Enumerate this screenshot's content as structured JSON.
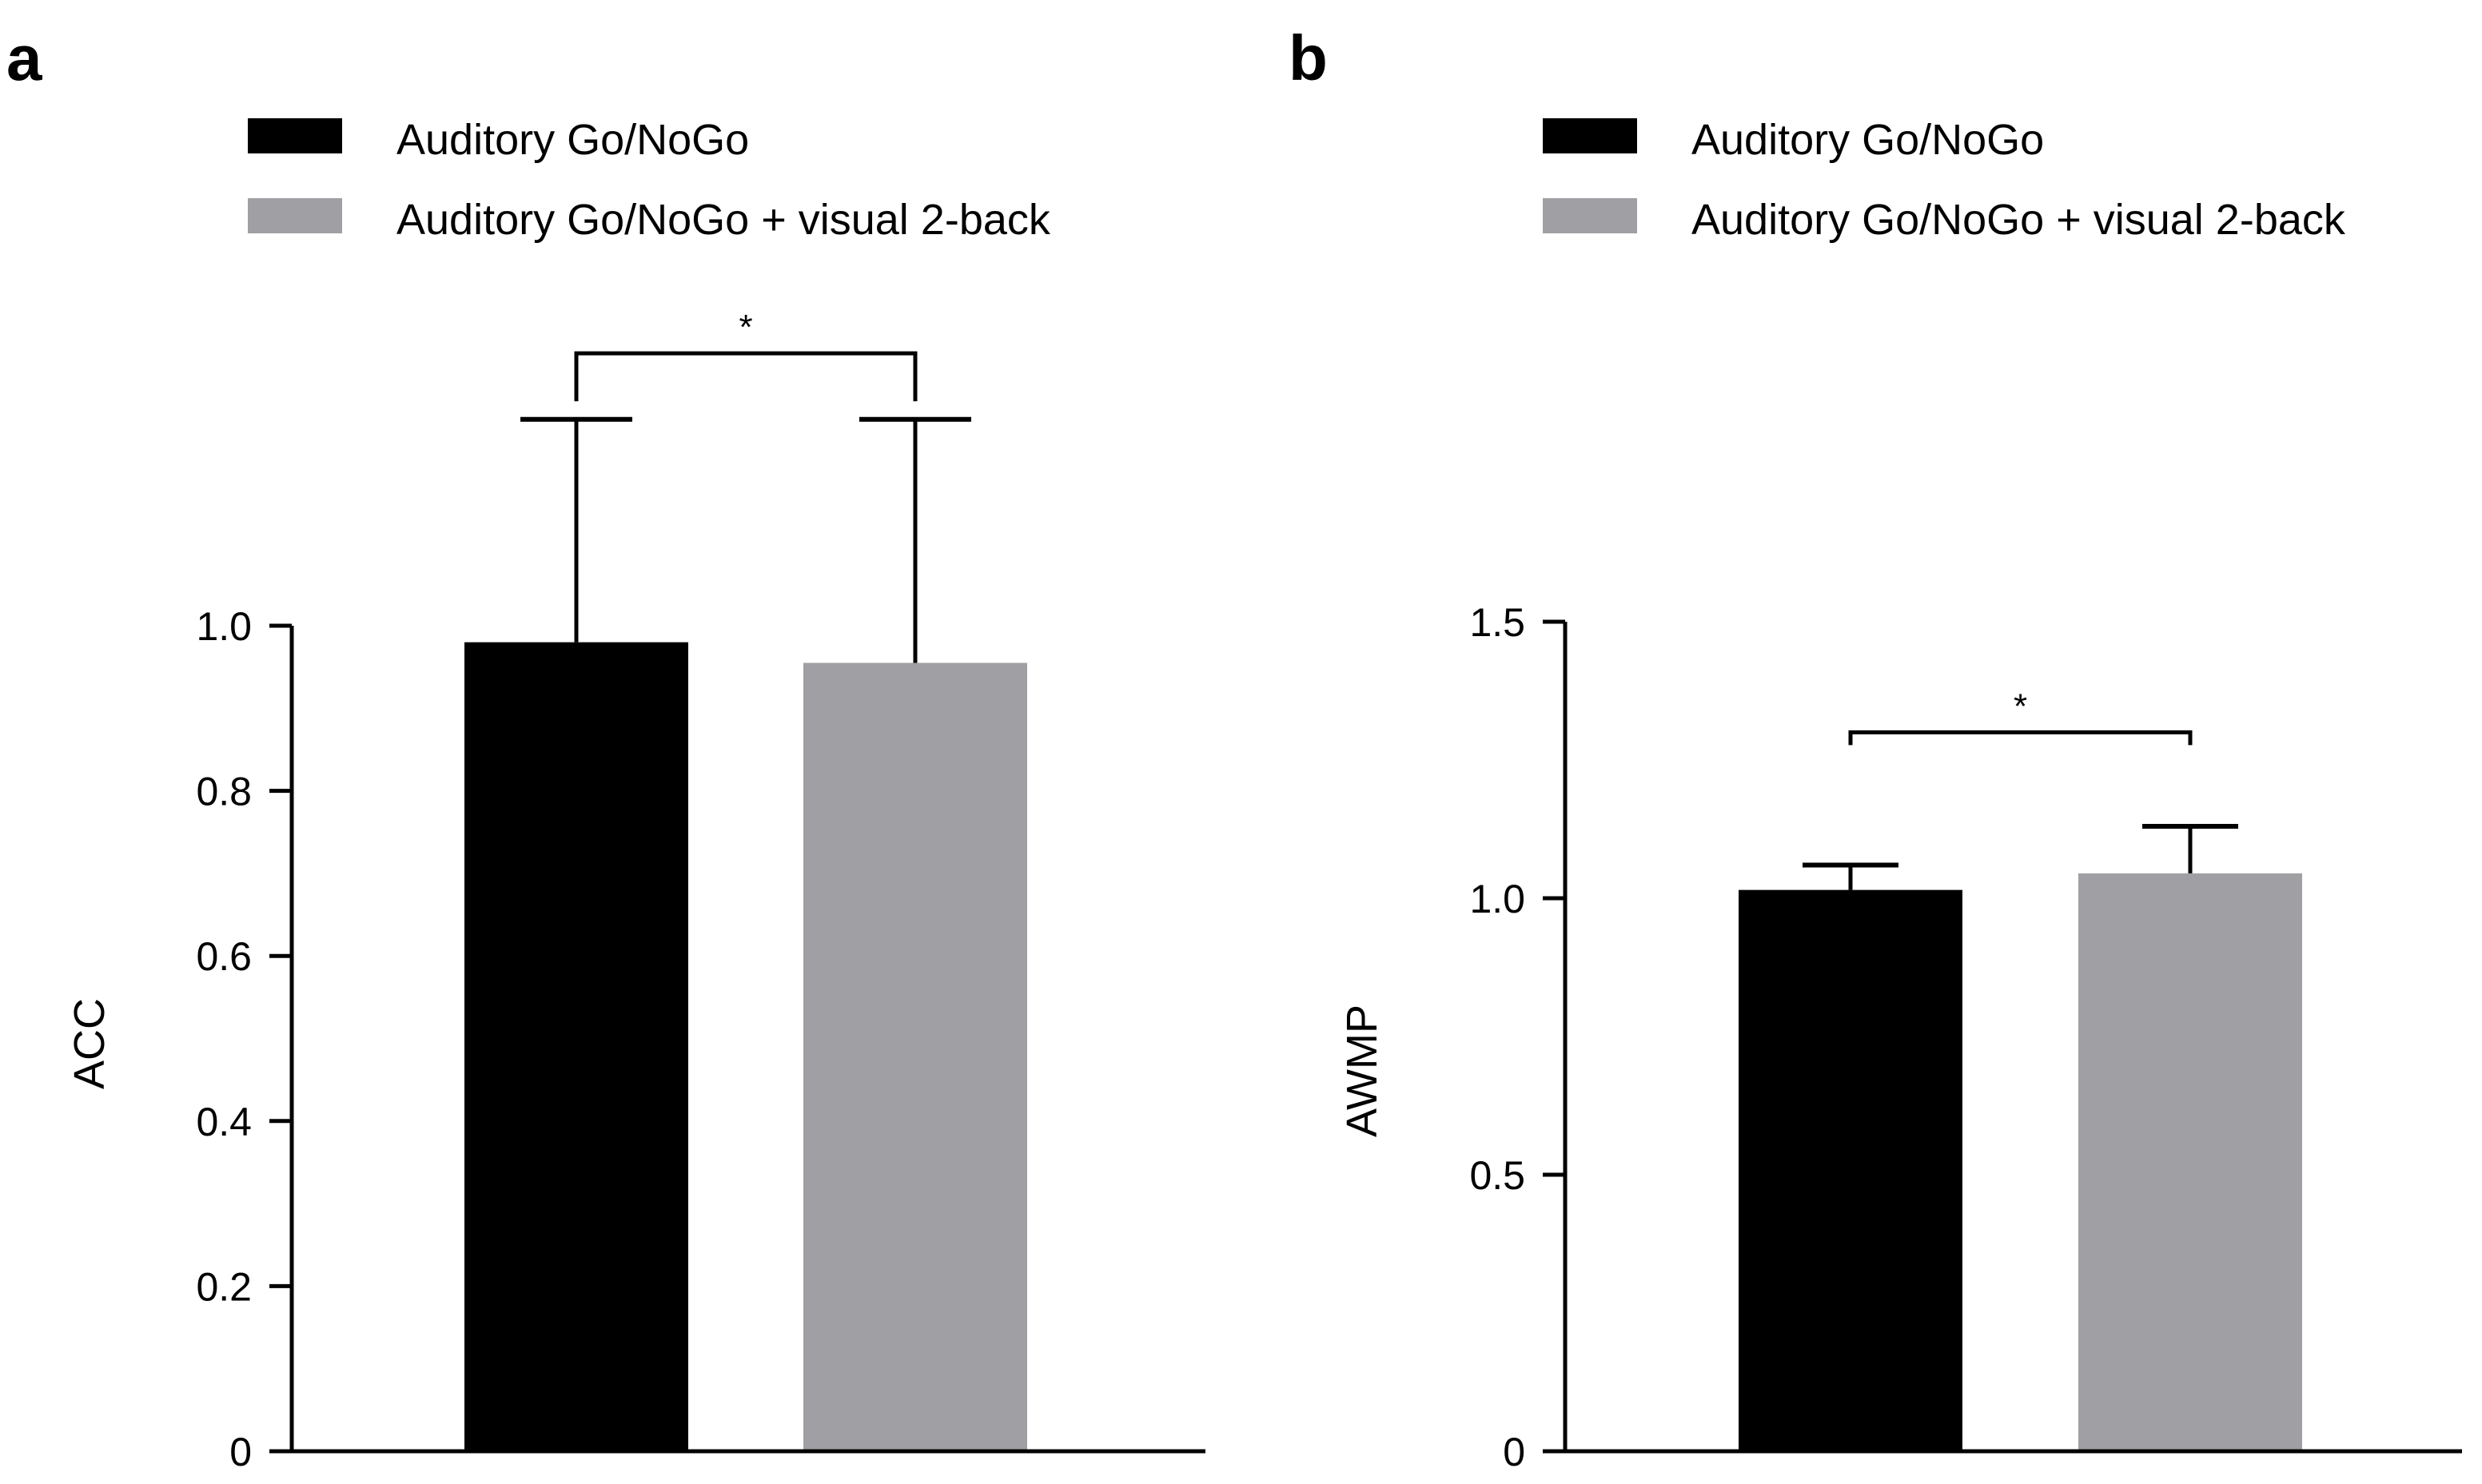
{
  "chart_data": [
    {
      "panel": "a",
      "type": "bar",
      "ylabel": "ACC",
      "xlabel": "",
      "ylim": [
        0,
        1.0
      ],
      "yticks": [
        0,
        0.2,
        0.4,
        0.6,
        0.8,
        1.0
      ],
      "ytick_labels": [
        "0",
        "0.2",
        "0.4",
        "0.6",
        "0.8",
        "1.0"
      ],
      "categories": [
        "Auditory Go/NoGo",
        "Auditory Go/NoGo + visual 2-back"
      ],
      "values": [
        0.98,
        0.955
      ],
      "errors": [
        0.27,
        0.295
      ],
      "colors": [
        "#000000",
        "#a0a0a4"
      ],
      "significance": {
        "label": "*",
        "between": [
          0,
          1
        ],
        "level": 1.33
      },
      "legend": [
        {
          "label": "Auditory Go/NoGo",
          "color": "#000000"
        },
        {
          "label": "Auditory Go/NoGo + visual 2-back",
          "color": "#a0a0a4"
        }
      ]
    },
    {
      "panel": "b",
      "type": "bar",
      "ylabel": "AWMP",
      "xlabel": "",
      "ylim": [
        0,
        1.5
      ],
      "yticks": [
        0,
        0.5,
        1.0,
        1.5
      ],
      "ytick_labels": [
        "0",
        "0.5",
        "1.0",
        "1.5"
      ],
      "categories": [
        "Auditory Go/NoGo",
        "Auditory Go/NoGo + visual 2-back"
      ],
      "values": [
        1.015,
        1.045
      ],
      "errors": [
        0.045,
        0.085
      ],
      "colors": [
        "#000000",
        "#a0a0a4"
      ],
      "significance": {
        "label": "*",
        "between": [
          0,
          1
        ],
        "level": 1.3
      },
      "legend": [
        {
          "label": "Auditory Go/NoGo",
          "color": "#000000"
        },
        {
          "label": "Auditory Go/NoGo + visual 2-back",
          "color": "#a0a0a4"
        }
      ]
    }
  ]
}
